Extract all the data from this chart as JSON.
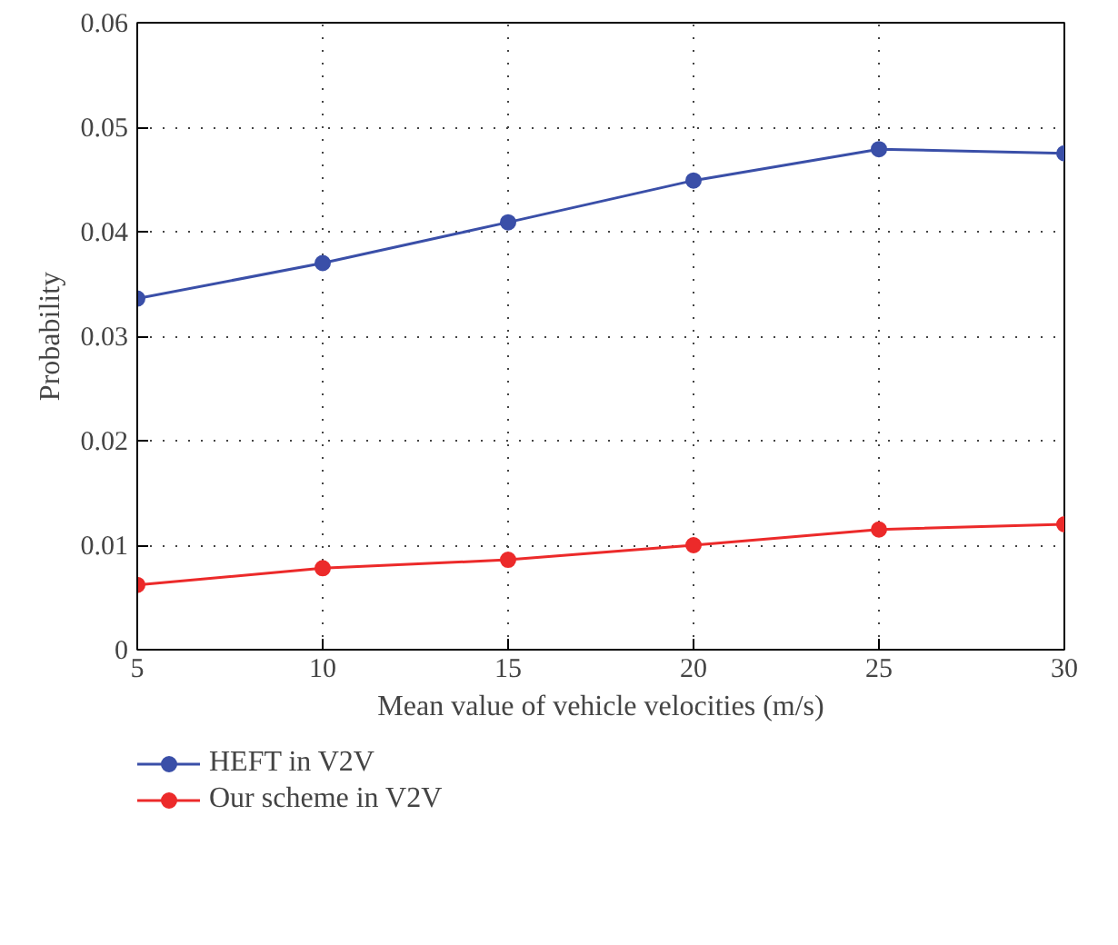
{
  "chart_data": {
    "type": "line",
    "xlabel": "Mean value of vehicle velocities (m/s)",
    "ylabel": "Probability",
    "x": [
      5,
      10,
      15,
      20,
      25,
      30
    ],
    "series": [
      {
        "name": "HEFT in V2V",
        "color": "#3a4fa8",
        "values": [
          0.0336,
          0.037,
          0.0409,
          0.0449,
          0.0479,
          0.0475
        ]
      },
      {
        "name": "Our scheme in V2V",
        "color": "#ec2a2a",
        "values": [
          0.0062,
          0.0078,
          0.0086,
          0.01,
          0.0115,
          0.012
        ]
      }
    ],
    "xlim": [
      5,
      30
    ],
    "xticks": [
      5,
      10,
      15,
      20,
      25,
      30
    ],
    "ylim": [
      0,
      0.06
    ],
    "yticks": [
      {
        "value": 0,
        "label": "0"
      },
      {
        "value": 0.01,
        "label": "0.01"
      },
      {
        "value": 0.02,
        "label": "0.02"
      },
      {
        "value": 0.03,
        "label": "0.03"
      },
      {
        "value": 0.04,
        "label": "0.04"
      },
      {
        "value": 0.05,
        "label": "0.05"
      },
      {
        "value": 0.06,
        "label": "0.06"
      }
    ],
    "grid": true,
    "legend": "bottom left",
    "marker": "circle",
    "line_style": "solid"
  }
}
